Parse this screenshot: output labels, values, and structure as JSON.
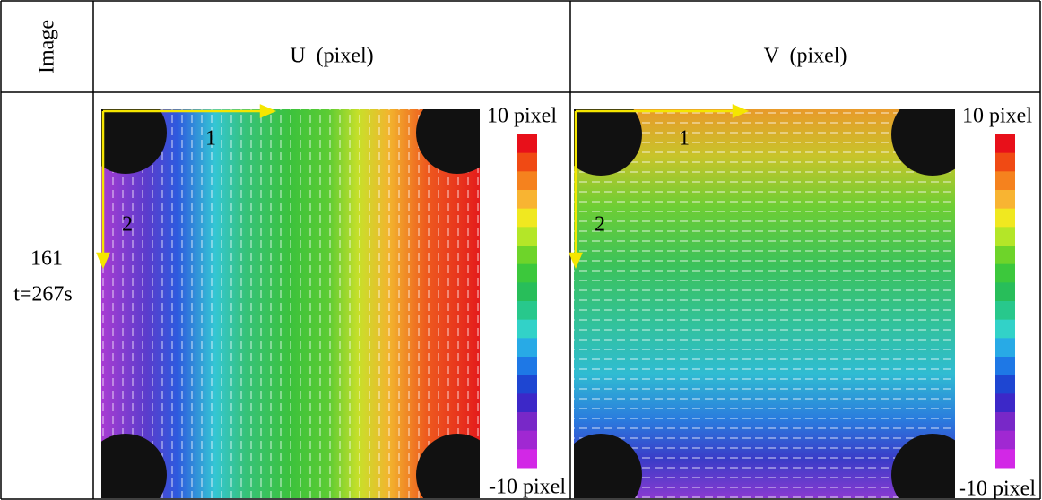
{
  "table": {
    "header": [
      "Image",
      "U  (pixel)",
      "V  (pixel)"
    ],
    "rows": [
      {
        "frame": "161",
        "time": "t=267s"
      }
    ],
    "panels": [
      {
        "axis1": "1",
        "axis2": "2",
        "colorbar_max": "10 pixel",
        "colorbar_min": "-10 pixel"
      },
      {
        "axis1": "1",
        "axis2": "2",
        "colorbar_max": "10 pixel",
        "colorbar_min": "-10 pixel"
      }
    ]
  }
}
